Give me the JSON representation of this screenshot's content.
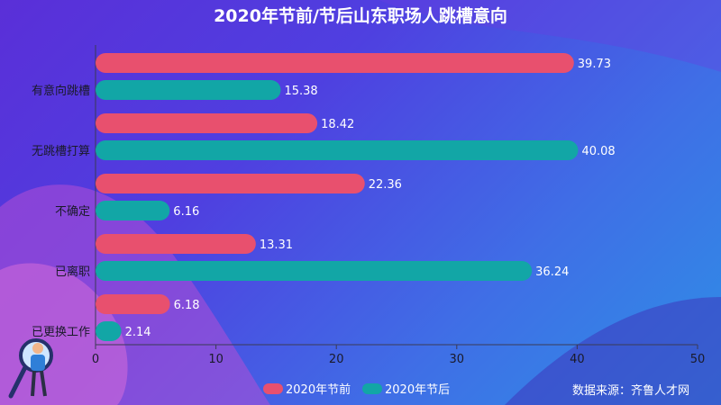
{
  "chart_data": {
    "type": "bar",
    "orientation": "horizontal",
    "title": "2020年节前/节后山东职场人跳槽意向",
    "categories": [
      "有意向跳槽",
      "无跳槽打算",
      "不确定",
      "已离职",
      "已更换工作"
    ],
    "series": [
      {
        "name": "2020年节前",
        "color": "#e8506e",
        "values": [
          39.73,
          18.42,
          22.36,
          13.31,
          6.18
        ]
      },
      {
        "name": "2020年节后",
        "color": "#12a6a6",
        "values": [
          15.38,
          40.08,
          6.16,
          36.24,
          2.14
        ]
      }
    ],
    "xlim": [
      0,
      50
    ],
    "xticks": [
      0,
      10,
      20,
      30,
      40,
      50
    ],
    "legend_position": "bottom",
    "source": "数据来源：齐鲁人才网"
  }
}
